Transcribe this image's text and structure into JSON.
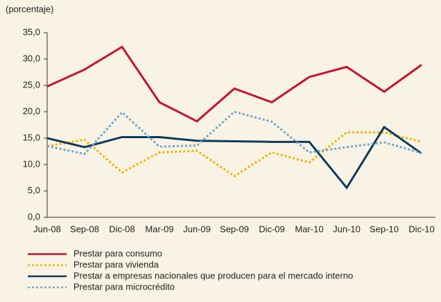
{
  "chart_data": {
    "type": "line",
    "y_label": "(porcentaje)",
    "categories": [
      "Jun-08",
      "Sep-08",
      "Dic-08",
      "Mar-09",
      "Jun-09",
      "Sep-09",
      "Dic-09",
      "Mar-10",
      "Jun-10",
      "Sep-10",
      "Dic-10"
    ],
    "series": [
      {
        "name": "Prestar para consumo",
        "color": "#c8102e",
        "dashed": false,
        "values": [
          24.8,
          28.0,
          32.3,
          21.8,
          18.2,
          24.4,
          21.8,
          26.6,
          28.5,
          23.8,
          28.9
        ]
      },
      {
        "name": "Prestar para vivienda",
        "color": "#f0b400",
        "dashed": true,
        "values": [
          13.5,
          14.7,
          8.5,
          12.3,
          12.6,
          7.8,
          12.3,
          10.4,
          16.1,
          16.1,
          14.3
        ]
      },
      {
        "name": "Prestar a empresas nacionales que producen para el mercado interno",
        "color": "#0b3a5c",
        "dashed": false,
        "values": [
          15.0,
          13.3,
          15.2,
          15.2,
          14.5,
          14.4,
          14.3,
          14.3,
          5.6,
          17.1,
          12.1
        ]
      },
      {
        "name": "Prestar para microcrédito",
        "color": "#6fa6cf",
        "dashed": true,
        "values": [
          13.5,
          12.0,
          19.9,
          13.4,
          13.6,
          20.0,
          18.1,
          12.3,
          13.3,
          14.2,
          12.2
        ]
      }
    ],
    "ylim": [
      0,
      35
    ],
    "yticks": [
      {
        "value": 0,
        "label": "0,0"
      },
      {
        "value": 5,
        "label": "5,0"
      },
      {
        "value": 10,
        "label": "10,0"
      },
      {
        "value": 15,
        "label": "15,0"
      },
      {
        "value": 20,
        "label": "20,0"
      },
      {
        "value": 25,
        "label": "25,0"
      },
      {
        "value": 30,
        "label": "30,0"
      },
      {
        "value": 35,
        "label": "35,0"
      }
    ],
    "legend": "bottom"
  }
}
